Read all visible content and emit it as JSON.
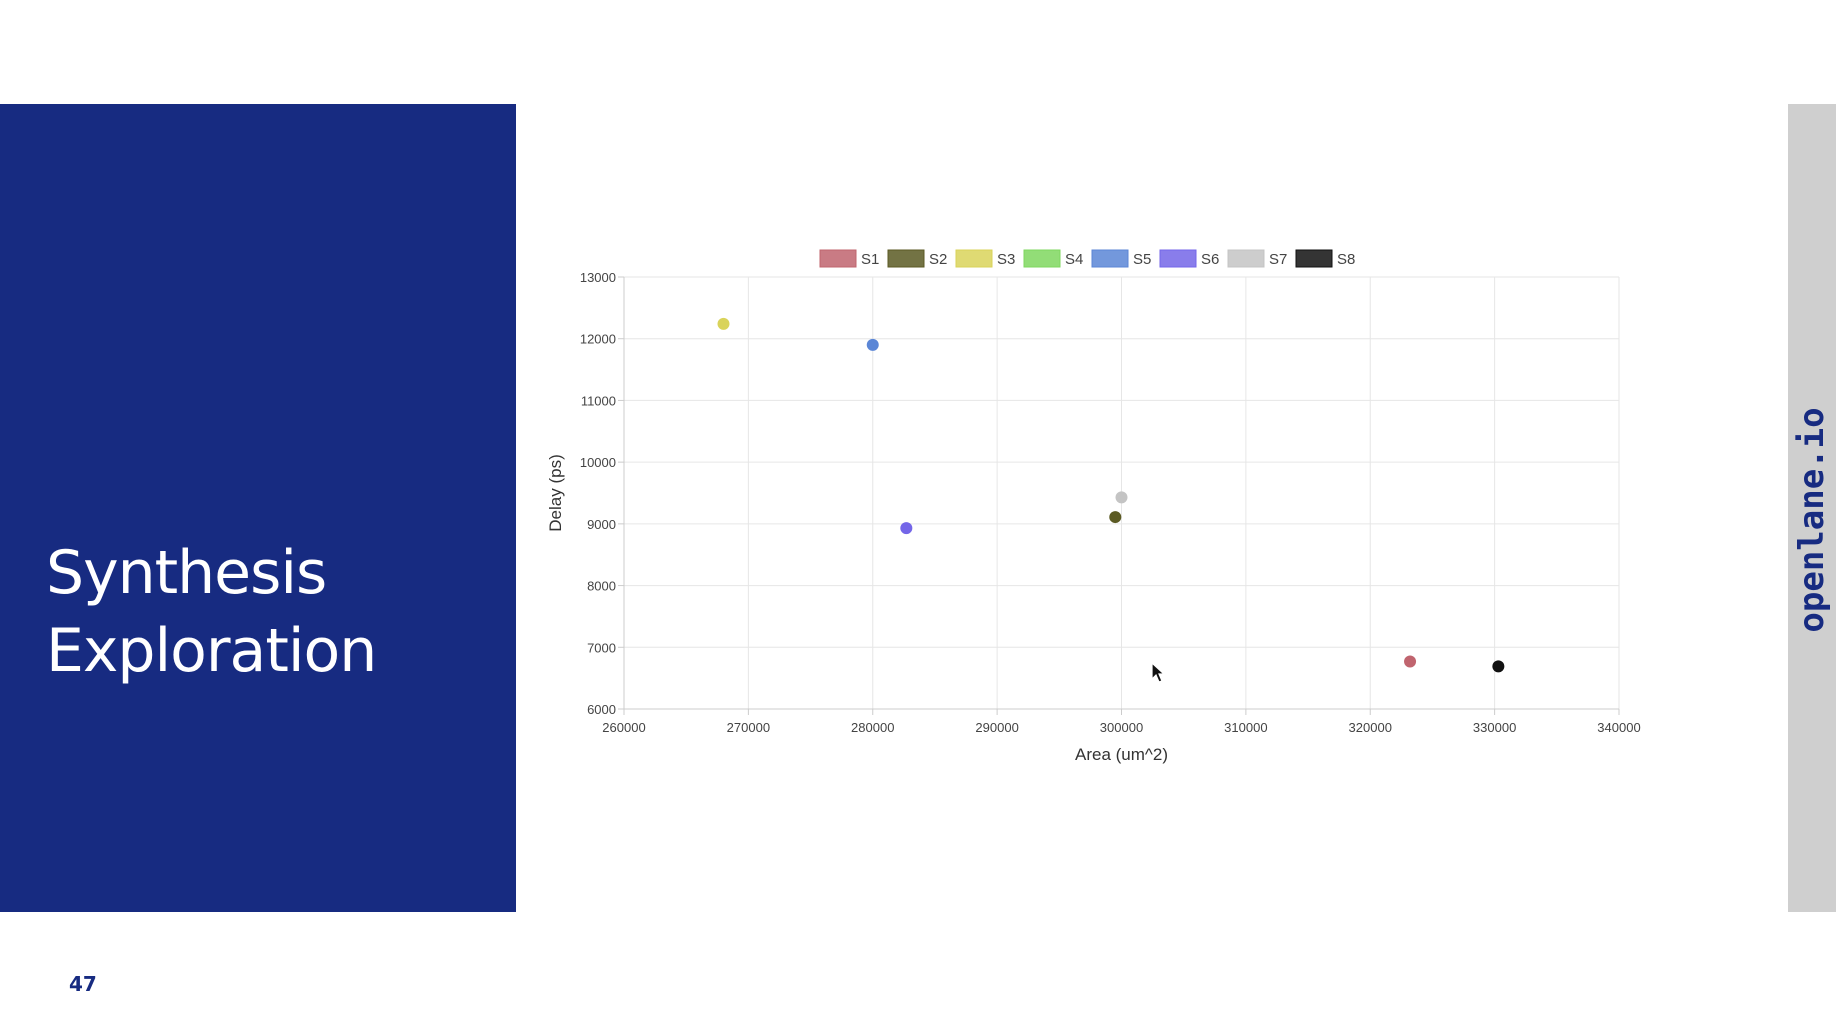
{
  "slide": {
    "title_line1": "Synthesis",
    "title_line2": "Exploration",
    "brand": "openlane.io",
    "page_number": "47"
  },
  "colors": {
    "panel": "#172b81",
    "strip": "#cfcfcf"
  },
  "chart_data": {
    "type": "scatter",
    "xlabel": "Area (um^2)",
    "ylabel": "Delay (ps)",
    "xlim": [
      260000,
      340000
    ],
    "ylim": [
      6000,
      13000
    ],
    "x_ticks": [
      "260000",
      "270000",
      "280000",
      "290000",
      "300000",
      "310000",
      "320000",
      "330000",
      "340000"
    ],
    "y_ticks": [
      "6000",
      "7000",
      "8000",
      "9000",
      "10000",
      "11000",
      "12000",
      "13000"
    ],
    "grid": true,
    "legend_position": "top",
    "series": [
      {
        "name": "S1",
        "color": "#c0646e",
        "points": [
          [
            323200,
            6770
          ]
        ]
      },
      {
        "name": "S2",
        "color": "#5b5a23",
        "points": [
          [
            299500,
            9110
          ]
        ]
      },
      {
        "name": "S3",
        "color": "#d9d35a",
        "points": [
          [
            268000,
            12240
          ]
        ]
      },
      {
        "name": "S4",
        "color": "#7fd75f",
        "points": []
      },
      {
        "name": "S5",
        "color": "#5b86d6",
        "points": [
          [
            280000,
            11900
          ]
        ]
      },
      {
        "name": "S6",
        "color": "#7466e8",
        "points": [
          [
            282700,
            8930
          ]
        ]
      },
      {
        "name": "S7",
        "color": "#c4c4c4",
        "points": [
          [
            300000,
            9430
          ]
        ]
      },
      {
        "name": "S8",
        "color": "#111111",
        "points": [
          [
            330300,
            6690
          ]
        ]
      }
    ]
  }
}
